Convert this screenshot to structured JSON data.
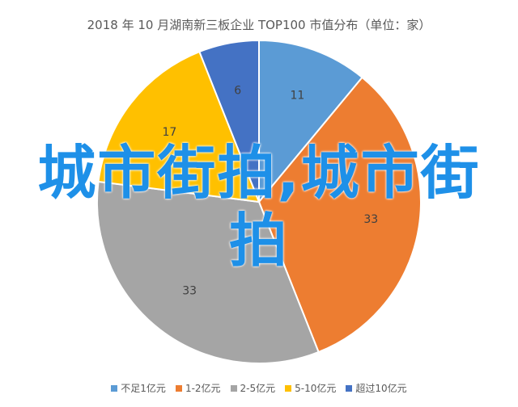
{
  "chart_data": {
    "type": "pie",
    "title": "2018 年 10 月湖南新三板企业 TOP100 市值分布（单位：家）",
    "categories": [
      "不足1亿元",
      "1-2亿元",
      "2-5亿元",
      "5-10亿元",
      "超过10亿元"
    ],
    "values": [
      11,
      33,
      33,
      17,
      6
    ],
    "colors": [
      "#5b9bd5",
      "#ed7d31",
      "#a5a5a5",
      "#ffc000",
      "#4472c4"
    ],
    "legend_position": "bottom"
  },
  "watermark": {
    "text": "城市街拍,城市街拍"
  }
}
